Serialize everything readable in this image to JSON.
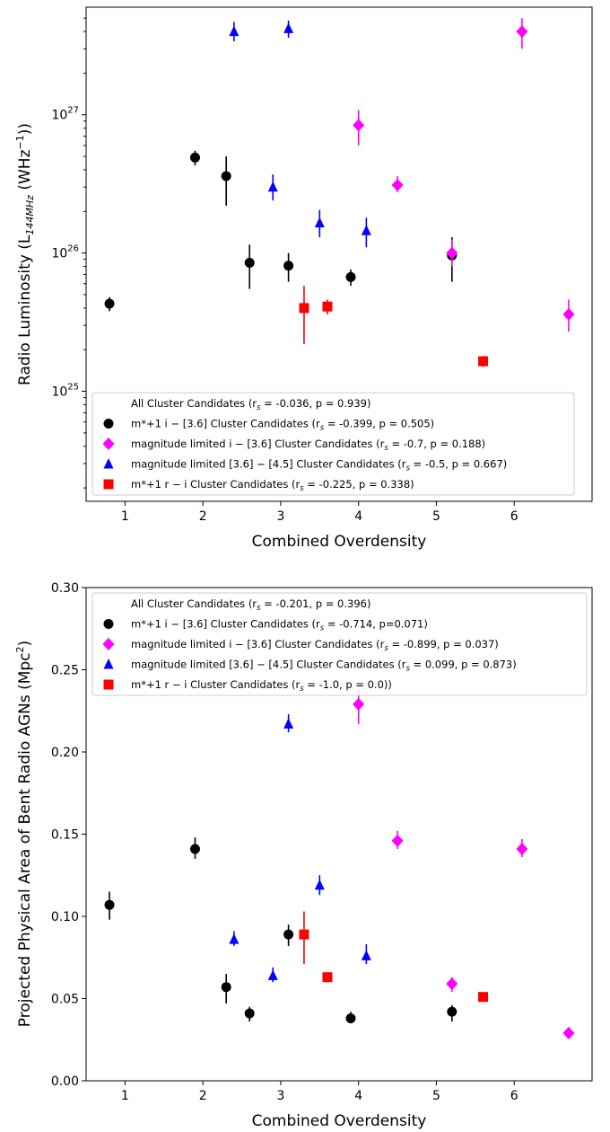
{
  "chart_data": [
    {
      "type": "scatter",
      "xlabel": "Combined Overdensity",
      "ylabel": "Radio Luminosity (L144MHz (WHz−1))",
      "ylabel_parts": {
        "prefix": "Radio Luminosity (L",
        "sub": "144MHz",
        "mid": " (WHz",
        "sup": "−1",
        "suffix": "))"
      },
      "xlim": [
        0.5,
        7.0
      ],
      "ylim": [
        1.6e+24,
        6e+27
      ],
      "yscale": "log",
      "x_ticks": [
        1,
        2,
        3,
        4,
        5,
        6
      ],
      "y_ticks": [
        {
          "value": 1e+25,
          "base": "10",
          "exp": "25"
        },
        {
          "value": 1e+26,
          "base": "10",
          "exp": "26"
        },
        {
          "value": 1e+27,
          "base": "10",
          "exp": "27"
        }
      ],
      "legend": [
        {
          "marker": "none",
          "color": "",
          "label": "All Cluster Candidates (r",
          "sub": "s",
          "rest": " = -0.036, p = 0.939)"
        },
        {
          "marker": "circle",
          "color": "#000000",
          "label": "m*+1 i − [3.6] Cluster Candidates (r",
          "sub": "s",
          "rest": " = -0.399, p = 0.505)"
        },
        {
          "marker": "diamond",
          "color": "#ff00ff",
          "label": "magnitude limited i − [3.6] Cluster Candidates (r",
          "sub": "s",
          "rest": " = -0.7, p = 0.188)"
        },
        {
          "marker": "triangle",
          "color": "#0000ff",
          "label": "magnitude limited [3.6] − [4.5] Cluster Candidates (r",
          "sub": "s",
          "rest": " = -0.5, p = 0.667)"
        },
        {
          "marker": "square",
          "color": "#ff0000",
          "label": "m*+1 r − i Cluster Candidates (r",
          "sub": "s",
          "rest": " = -0.225, p = 0.338)"
        }
      ],
      "series": [
        {
          "name": "m*+1 i − [3.6] Cluster Candidates",
          "marker": "circle",
          "color": "#000000",
          "points": [
            {
              "x": 0.8,
              "y": 4.3e+25,
              "lo": 3.8e+25,
              "hi": 4.8e+25
            },
            {
              "x": 1.9,
              "y": 4.9e+26,
              "lo": 4.3e+26,
              "hi": 5.5e+26
            },
            {
              "x": 2.3,
              "y": 3.6e+26,
              "lo": 2.2e+26,
              "hi": 5e+26
            },
            {
              "x": 2.6,
              "y": 8.5e+25,
              "lo": 5.5e+25,
              "hi": 1.15e+26
            },
            {
              "x": 3.1,
              "y": 8.1e+25,
              "lo": 6.2e+25,
              "hi": 1e+26
            },
            {
              "x": 3.9,
              "y": 6.7e+25,
              "lo": 5.8e+25,
              "hi": 7.6e+25
            },
            {
              "x": 5.2,
              "y": 9.6e+25,
              "lo": 6.2e+25,
              "hi": 1.3e+26
            }
          ]
        },
        {
          "name": "magnitude limited i − [3.6] Cluster Candidates",
          "marker": "diamond",
          "color": "#ff00ff",
          "points": [
            {
              "x": 4.0,
              "y": 8.4e+26,
              "lo": 6e+26,
              "hi": 1.08e+27
            },
            {
              "x": 4.5,
              "y": 3.1e+26,
              "lo": 2.75e+26,
              "hi": 3.6e+26
            },
            {
              "x": 5.2,
              "y": 1e+26,
              "lo": 8e+25,
              "hi": 1.25e+26
            },
            {
              "x": 6.1,
              "y": 4e+27,
              "lo": 3e+27,
              "hi": 5e+27
            },
            {
              "x": 6.7,
              "y": 3.6e+25,
              "lo": 2.7e+25,
              "hi": 4.6e+25
            }
          ]
        },
        {
          "name": "magnitude limited [3.6] − [4.5] Cluster Candidates",
          "marker": "triangle",
          "color": "#0000ff",
          "points": [
            {
              "x": 2.4,
              "y": 4e+27,
              "lo": 3.4e+27,
              "hi": 4.7e+27
            },
            {
              "x": 2.9,
              "y": 3e+26,
              "lo": 2.4e+26,
              "hi": 3.7e+26
            },
            {
              "x": 3.1,
              "y": 4.2e+27,
              "lo": 3.6e+27,
              "hi": 4.8e+27
            },
            {
              "x": 3.5,
              "y": 1.65e+26,
              "lo": 1.3e+26,
              "hi": 2.05e+26
            },
            {
              "x": 4.1,
              "y": 1.45e+26,
              "lo": 1.1e+26,
              "hi": 1.8e+26
            }
          ]
        },
        {
          "name": "m*+1 r − i Cluster Candidates",
          "marker": "square",
          "color": "#ff0000",
          "points": [
            {
              "x": 3.3,
              "y": 4e+25,
              "lo": 2.2e+25,
              "hi": 5.8e+25
            },
            {
              "x": 3.6,
              "y": 4.1e+25,
              "lo": 3.6e+25,
              "hi": 4.6e+25
            },
            {
              "x": 5.6,
              "y": 1.65e+25,
              "lo": 1.5e+25,
              "hi": 1.8e+25
            }
          ]
        }
      ]
    },
    {
      "type": "scatter",
      "xlabel": "Combined Overdensity",
      "ylabel": "Projected Physical Area of Bent Radio AGNs (Mpc2)",
      "ylabel_parts": {
        "prefix": "Projected Physical Area of Bent Radio AGNs (Mpc",
        "sup": "2",
        "suffix": ")"
      },
      "xlim": [
        0.5,
        7.0
      ],
      "ylim": [
        0.0,
        0.3
      ],
      "yscale": "linear",
      "x_ticks": [
        1,
        2,
        3,
        4,
        5,
        6
      ],
      "y_ticks": [
        "0.00",
        "0.05",
        "0.10",
        "0.15",
        "0.20",
        "0.25",
        "0.30"
      ],
      "legend": [
        {
          "marker": "none",
          "color": "",
          "label": "All Cluster Candidates (r",
          "sub": "s",
          "rest": " = -0.201, p = 0.396)"
        },
        {
          "marker": "circle",
          "color": "#000000",
          "label": "m*+1 i − [3.6] Cluster Candidates (r",
          "sub": "s",
          "rest": " = -0.714, p=0.071)"
        },
        {
          "marker": "diamond",
          "color": "#ff00ff",
          "label": "magnitude limited i − [3.6] Cluster Candidates (r",
          "sub": "s",
          "rest": " = -0.899, p = 0.037)"
        },
        {
          "marker": "triangle",
          "color": "#0000ff",
          "label": "magnitude limited [3.6] − [4.5] Cluster Candidates (r",
          "sub": "s",
          "rest": " = 0.099, p = 0.873)"
        },
        {
          "marker": "square",
          "color": "#ff0000",
          "label": "m*+1 r − i Cluster Candidates (r",
          "sub": "s",
          "rest": " = -1.0, p = 0.0))"
        }
      ],
      "series": [
        {
          "name": "m*+1 i − [3.6] Cluster Candidates",
          "marker": "circle",
          "color": "#000000",
          "points": [
            {
              "x": 0.8,
              "y": 0.107,
              "lo": 0.098,
              "hi": 0.115
            },
            {
              "x": 1.9,
              "y": 0.141,
              "lo": 0.135,
              "hi": 0.148
            },
            {
              "x": 2.3,
              "y": 0.057,
              "lo": 0.047,
              "hi": 0.065
            },
            {
              "x": 2.6,
              "y": 0.041,
              "lo": 0.036,
              "hi": 0.045
            },
            {
              "x": 3.1,
              "y": 0.089,
              "lo": 0.082,
              "hi": 0.095
            },
            {
              "x": 3.9,
              "y": 0.038,
              "lo": 0.035,
              "hi": 0.042
            },
            {
              "x": 5.2,
              "y": 0.042,
              "lo": 0.036,
              "hi": 0.046
            }
          ]
        },
        {
          "name": "magnitude limited i − [3.6] Cluster Candidates",
          "marker": "diamond",
          "color": "#ff00ff",
          "points": [
            {
              "x": 4.0,
              "y": 0.229,
              "lo": 0.217,
              "hi": 0.238
            },
            {
              "x": 4.5,
              "y": 0.146,
              "lo": 0.141,
              "hi": 0.152
            },
            {
              "x": 5.2,
              "y": 0.059,
              "lo": 0.054,
              "hi": 0.063
            },
            {
              "x": 6.1,
              "y": 0.141,
              "lo": 0.136,
              "hi": 0.147
            },
            {
              "x": 6.7,
              "y": 0.029,
              "lo": 0.027,
              "hi": 0.031
            }
          ]
        },
        {
          "name": "magnitude limited [3.6] − [4.5] Cluster Candidates",
          "marker": "triangle",
          "color": "#0000ff",
          "points": [
            {
              "x": 2.4,
              "y": 0.086,
              "lo": 0.082,
              "hi": 0.091
            },
            {
              "x": 2.9,
              "y": 0.064,
              "lo": 0.06,
              "hi": 0.069
            },
            {
              "x": 3.1,
              "y": 0.217,
              "lo": 0.212,
              "hi": 0.223
            },
            {
              "x": 3.5,
              "y": 0.119,
              "lo": 0.113,
              "hi": 0.125
            },
            {
              "x": 4.1,
              "y": 0.076,
              "lo": 0.071,
              "hi": 0.083
            }
          ]
        },
        {
          "name": "m*+1 r − i Cluster Candidates",
          "marker": "square",
          "color": "#ff0000",
          "points": [
            {
              "x": 3.3,
              "y": 0.089,
              "lo": 0.071,
              "hi": 0.103
            },
            {
              "x": 3.6,
              "y": 0.063,
              "lo": 0.06,
              "hi": 0.066
            },
            {
              "x": 5.6,
              "y": 0.051,
              "lo": 0.049,
              "hi": 0.052
            }
          ]
        }
      ]
    }
  ]
}
